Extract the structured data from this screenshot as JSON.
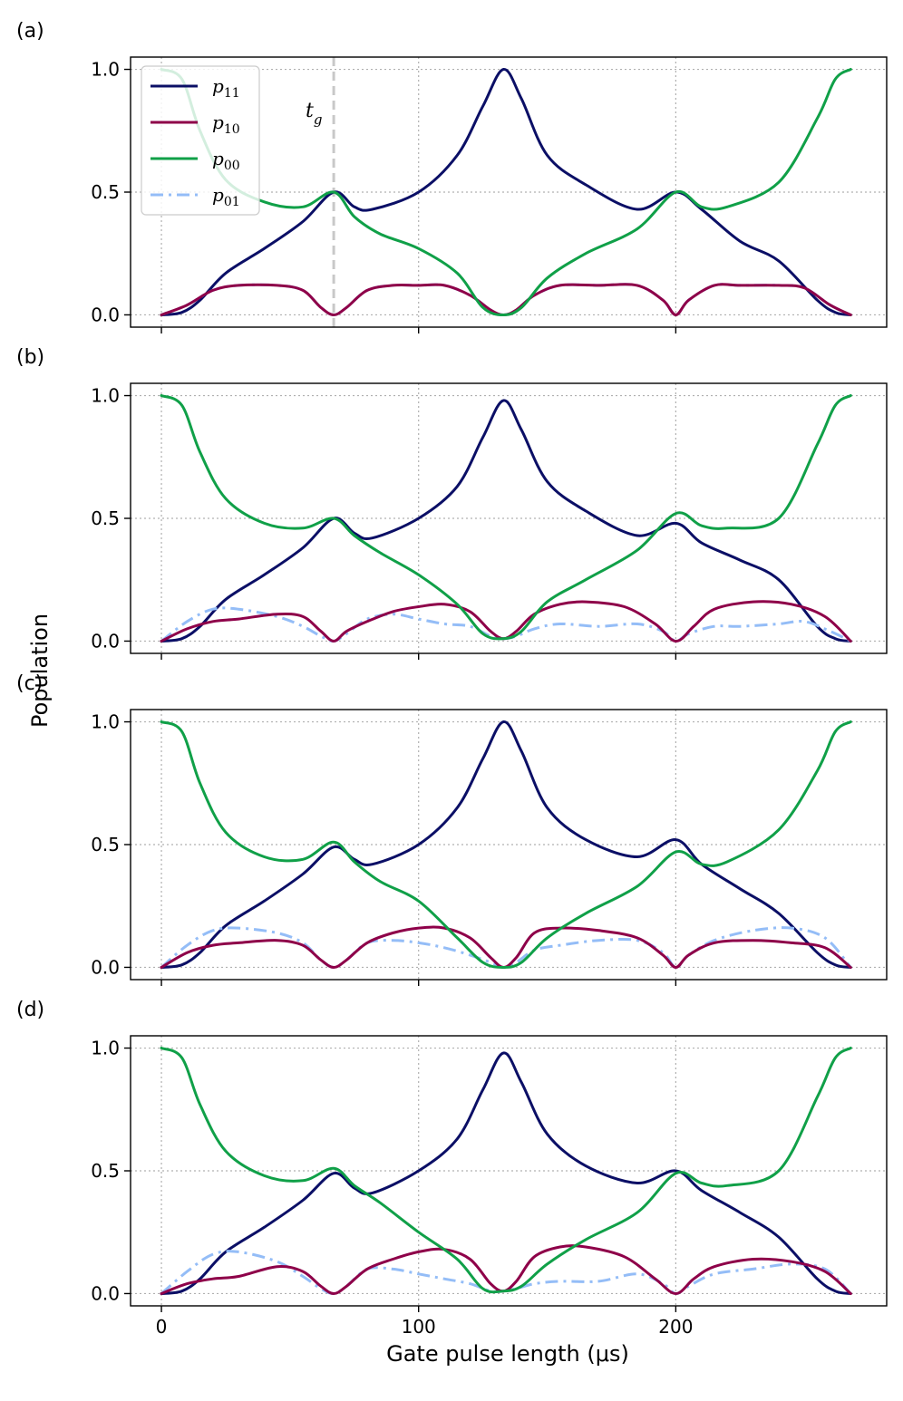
{
  "chart_data": {
    "type": "line",
    "ylabel": "Population",
    "xlabel": "Gate pulse length (μs)",
    "xlim": [
      -12,
      282
    ],
    "ylim": [
      -0.05,
      1.05
    ],
    "xticks": [
      0,
      100,
      200
    ],
    "yticks": [
      0.0,
      0.5,
      1.0
    ],
    "xtick_labels": [
      "0",
      "100",
      "200"
    ],
    "ytick_labels": [
      "0.0",
      "0.5",
      "1.0"
    ],
    "grid": true,
    "legend": {
      "location": "top-left",
      "entries": [
        {
          "label": "p",
          "sub": "11",
          "color": "#0b0f66",
          "style": "solid"
        },
        {
          "label": "p",
          "sub": "10",
          "color": "#8e0049",
          "style": "solid"
        },
        {
          "label": "p",
          "sub": "00",
          "color": "#10a048",
          "style": "solid"
        },
        {
          "label": "p",
          "sub": "01",
          "color": "#94bdf7",
          "style": "dashdot"
        }
      ]
    },
    "annotation": {
      "text": "t",
      "sub": "g",
      "x": 67
    },
    "panels": [
      {
        "label": "(a)",
        "series": [
          {
            "name": "p11",
            "x": [
              0,
              8,
              15,
              25,
              40,
              55,
              67,
              75,
              82,
              100,
              115,
              125,
              133,
              140,
              150,
              165,
              185,
              200,
              210,
              225,
              240,
              255,
              262,
              268
            ],
            "values": [
              0,
              0.01,
              0.06,
              0.17,
              0.27,
              0.38,
              0.5,
              0.44,
              0.43,
              0.5,
              0.65,
              0.85,
              1.0,
              0.88,
              0.65,
              0.53,
              0.43,
              0.5,
              0.43,
              0.3,
              0.22,
              0.06,
              0.01,
              0
            ]
          },
          {
            "name": "p00",
            "x": [
              0,
              8,
              15,
              25,
              40,
              55,
              67,
              75,
              85,
              100,
              115,
              125,
              133,
              140,
              150,
              165,
              185,
              200,
              210,
              220,
              240,
              255,
              262,
              268
            ],
            "values": [
              1.0,
              0.96,
              0.75,
              0.55,
              0.46,
              0.44,
              0.5,
              0.4,
              0.33,
              0.27,
              0.17,
              0.03,
              0.0,
              0.03,
              0.15,
              0.25,
              0.35,
              0.5,
              0.44,
              0.44,
              0.54,
              0.8,
              0.96,
              1.0
            ]
          },
          {
            "name": "p10",
            "x": [
              0,
              10,
              20,
              30,
              45,
              55,
              62,
              67,
              72,
              80,
              90,
              100,
              110,
              120,
              128,
              133,
              138,
              145,
              155,
              170,
              185,
              195,
              200,
              205,
              215,
              225,
              240,
              250,
              260,
              268
            ],
            "values": [
              0,
              0.04,
              0.1,
              0.12,
              0.12,
              0.1,
              0.03,
              0,
              0.03,
              0.1,
              0.12,
              0.12,
              0.12,
              0.08,
              0.02,
              0,
              0.02,
              0.08,
              0.12,
              0.12,
              0.12,
              0.06,
              0,
              0.06,
              0.12,
              0.12,
              0.12,
              0.11,
              0.04,
              0
            ]
          },
          {
            "name": "p01",
            "x": [
              0,
              10,
              20,
              30,
              45,
              55,
              62,
              67,
              72,
              80,
              90,
              100,
              110,
              120,
              128,
              133,
              138,
              145,
              155,
              170,
              185,
              195,
              200,
              205,
              215,
              225,
              240,
              250,
              260,
              268
            ],
            "values": [
              0,
              0.04,
              0.1,
              0.12,
              0.12,
              0.1,
              0.03,
              0,
              0.03,
              0.1,
              0.12,
              0.12,
              0.12,
              0.08,
              0.02,
              0,
              0.02,
              0.08,
              0.12,
              0.12,
              0.12,
              0.06,
              0,
              0.06,
              0.12,
              0.12,
              0.12,
              0.11,
              0.04,
              0
            ]
          }
        ]
      },
      {
        "label": "(b)",
        "series": [
          {
            "name": "p11",
            "x": [
              0,
              8,
              15,
              25,
              40,
              55,
              67,
              75,
              82,
              100,
              115,
              125,
              133,
              140,
              150,
              165,
              185,
              200,
              210,
              225,
              240,
              255,
              262,
              268
            ],
            "values": [
              0,
              0.01,
              0.06,
              0.17,
              0.27,
              0.38,
              0.5,
              0.44,
              0.42,
              0.5,
              0.63,
              0.83,
              0.98,
              0.86,
              0.65,
              0.53,
              0.43,
              0.48,
              0.4,
              0.33,
              0.25,
              0.06,
              0.01,
              0
            ]
          },
          {
            "name": "p00",
            "x": [
              0,
              8,
              15,
              25,
              40,
              55,
              67,
              75,
              85,
              100,
              115,
              125,
              133,
              140,
              150,
              165,
              185,
              200,
              210,
              220,
              240,
              255,
              262,
              268
            ],
            "values": [
              1.0,
              0.96,
              0.77,
              0.58,
              0.48,
              0.46,
              0.5,
              0.43,
              0.36,
              0.27,
              0.15,
              0.03,
              0.01,
              0.04,
              0.16,
              0.25,
              0.37,
              0.52,
              0.47,
              0.46,
              0.5,
              0.8,
              0.96,
              1.0
            ]
          },
          {
            "name": "p10",
            "x": [
              0,
              10,
              20,
              30,
              45,
              55,
              62,
              67,
              72,
              80,
              90,
              100,
              110,
              120,
              128,
              133,
              138,
              145,
              155,
              165,
              180,
              192,
              200,
              207,
              215,
              230,
              245,
              258,
              268
            ],
            "values": [
              0,
              0.05,
              0.08,
              0.09,
              0.11,
              0.1,
              0.04,
              0,
              0.04,
              0.08,
              0.12,
              0.14,
              0.15,
              0.12,
              0.04,
              0.01,
              0.04,
              0.11,
              0.15,
              0.16,
              0.14,
              0.07,
              0,
              0.06,
              0.13,
              0.16,
              0.15,
              0.1,
              0
            ]
          },
          {
            "name": "p01",
            "x": [
              0,
              10,
              20,
              30,
              45,
              55,
              62,
              67,
              72,
              80,
              90,
              100,
              110,
              120,
              128,
              133,
              138,
              145,
              155,
              170,
              185,
              195,
              200,
              205,
              215,
              225,
              240,
              250,
              260,
              268
            ],
            "values": [
              0,
              0.08,
              0.13,
              0.13,
              0.1,
              0.06,
              0.02,
              0,
              0.03,
              0.09,
              0.11,
              0.09,
              0.07,
              0.06,
              0.02,
              0.01,
              0.02,
              0.05,
              0.07,
              0.06,
              0.07,
              0.04,
              0,
              0.03,
              0.06,
              0.06,
              0.07,
              0.08,
              0.04,
              0
            ]
          }
        ]
      },
      {
        "label": "(c)",
        "series": [
          {
            "name": "p11",
            "x": [
              0,
              8,
              15,
              25,
              40,
              55,
              67,
              75,
              82,
              100,
              115,
              125,
              133,
              140,
              150,
              165,
              185,
              200,
              210,
              225,
              240,
              255,
              262,
              268
            ],
            "values": [
              0,
              0.01,
              0.06,
              0.17,
              0.27,
              0.38,
              0.49,
              0.44,
              0.42,
              0.5,
              0.65,
              0.85,
              1.0,
              0.88,
              0.65,
              0.52,
              0.45,
              0.52,
              0.42,
              0.32,
              0.22,
              0.06,
              0.01,
              0
            ]
          },
          {
            "name": "p00",
            "x": [
              0,
              8,
              15,
              25,
              40,
              55,
              67,
              75,
              85,
              100,
              115,
              125,
              133,
              140,
              150,
              165,
              185,
              200,
              210,
              220,
              240,
              255,
              262,
              268
            ],
            "values": [
              1.0,
              0.96,
              0.75,
              0.55,
              0.45,
              0.44,
              0.51,
              0.43,
              0.35,
              0.27,
              0.12,
              0.02,
              0.0,
              0.02,
              0.12,
              0.22,
              0.33,
              0.47,
              0.42,
              0.43,
              0.56,
              0.8,
              0.96,
              1.0
            ]
          },
          {
            "name": "p10",
            "x": [
              0,
              10,
              20,
              30,
              45,
              55,
              62,
              67,
              72,
              80,
              90,
              100,
              110,
              120,
              128,
              133,
              138,
              145,
              155,
              170,
              185,
              195,
              200,
              205,
              215,
              230,
              245,
              258,
              268
            ],
            "values": [
              0,
              0.06,
              0.09,
              0.1,
              0.11,
              0.09,
              0.03,
              0,
              0.03,
              0.1,
              0.14,
              0.16,
              0.16,
              0.12,
              0.04,
              0,
              0.04,
              0.14,
              0.16,
              0.15,
              0.12,
              0.05,
              0,
              0.05,
              0.1,
              0.11,
              0.1,
              0.08,
              0
            ]
          },
          {
            "name": "p01",
            "x": [
              0,
              10,
              20,
              30,
              45,
              55,
              62,
              67,
              72,
              80,
              90,
              100,
              110,
              120,
              128,
              133,
              138,
              145,
              155,
              170,
              185,
              195,
              200,
              205,
              215,
              230,
              245,
              258,
              268
            ],
            "values": [
              0,
              0.09,
              0.15,
              0.16,
              0.14,
              0.1,
              0.03,
              0,
              0.03,
              0.1,
              0.11,
              0.1,
              0.08,
              0.05,
              0.02,
              0,
              0.02,
              0.07,
              0.09,
              0.11,
              0.11,
              0.06,
              0,
              0.05,
              0.11,
              0.15,
              0.16,
              0.12,
              0
            ]
          }
        ]
      },
      {
        "label": "(d)",
        "series": [
          {
            "name": "p11",
            "x": [
              0,
              8,
              15,
              25,
              40,
              55,
              67,
              75,
              82,
              100,
              115,
              125,
              133,
              140,
              150,
              165,
              185,
              200,
              210,
              225,
              240,
              255,
              262,
              268
            ],
            "values": [
              0,
              0.01,
              0.06,
              0.17,
              0.27,
              0.38,
              0.49,
              0.43,
              0.41,
              0.5,
              0.63,
              0.83,
              0.98,
              0.86,
              0.65,
              0.52,
              0.45,
              0.5,
              0.42,
              0.33,
              0.23,
              0.06,
              0.01,
              0
            ]
          },
          {
            "name": "p00",
            "x": [
              0,
              8,
              15,
              25,
              40,
              55,
              67,
              75,
              85,
              100,
              115,
              125,
              133,
              140,
              150,
              165,
              185,
              200,
              210,
              220,
              240,
              255,
              262,
              268
            ],
            "values": [
              1.0,
              0.96,
              0.77,
              0.58,
              0.48,
              0.46,
              0.51,
              0.44,
              0.37,
              0.25,
              0.14,
              0.02,
              0.01,
              0.03,
              0.12,
              0.22,
              0.33,
              0.49,
              0.45,
              0.44,
              0.5,
              0.8,
              0.96,
              1.0
            ]
          },
          {
            "name": "p10",
            "x": [
              0,
              10,
              20,
              30,
              45,
              55,
              62,
              67,
              72,
              80,
              90,
              100,
              110,
              120,
              128,
              133,
              138,
              145,
              155,
              165,
              180,
              192,
              200,
              207,
              215,
              230,
              245,
              258,
              268
            ],
            "values": [
              0,
              0.04,
              0.06,
              0.07,
              0.11,
              0.09,
              0.03,
              0,
              0.03,
              0.1,
              0.14,
              0.17,
              0.18,
              0.14,
              0.04,
              0.01,
              0.05,
              0.15,
              0.19,
              0.19,
              0.15,
              0.06,
              0,
              0.06,
              0.11,
              0.14,
              0.13,
              0.09,
              0
            ]
          },
          {
            "name": "p01",
            "x": [
              0,
              10,
              20,
              30,
              45,
              55,
              62,
              67,
              72,
              80,
              90,
              100,
              110,
              120,
              128,
              133,
              138,
              145,
              155,
              170,
              185,
              195,
              200,
              205,
              215,
              230,
              245,
              258,
              268
            ],
            "values": [
              0,
              0.09,
              0.16,
              0.17,
              0.13,
              0.07,
              0.02,
              0,
              0.03,
              0.1,
              0.1,
              0.08,
              0.06,
              0.04,
              0.01,
              0.01,
              0.02,
              0.04,
              0.05,
              0.05,
              0.08,
              0.04,
              0,
              0.03,
              0.08,
              0.1,
              0.12,
              0.1,
              0
            ]
          }
        ]
      }
    ]
  }
}
